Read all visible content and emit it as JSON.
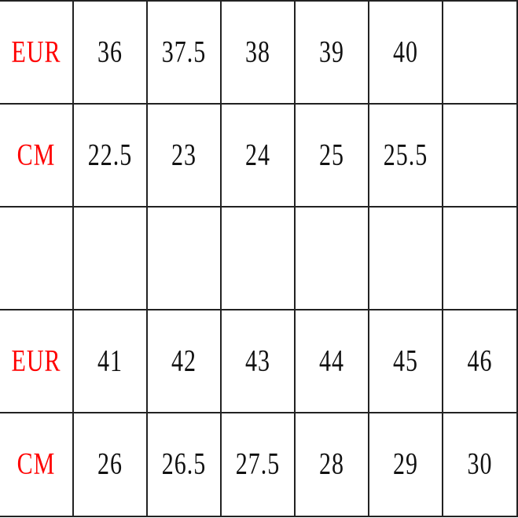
{
  "table": {
    "rows": [
      {
        "label": "EUR",
        "values": [
          "36",
          "37.5",
          "38",
          "39",
          "40",
          ""
        ]
      },
      {
        "label": "CM",
        "values": [
          "22.5",
          "23",
          "24",
          "25",
          "25.5",
          ""
        ]
      },
      {
        "label": "",
        "values": [
          "",
          "",
          "",
          "",
          "",
          ""
        ]
      },
      {
        "label": "EUR",
        "values": [
          "41",
          "42",
          "43",
          "44",
          "45",
          "46"
        ]
      },
      {
        "label": "CM",
        "values": [
          "26",
          "26.5",
          "27.5",
          "28",
          "29",
          "30"
        ]
      }
    ],
    "label_color": "#ff0000",
    "value_color": "#111111"
  }
}
